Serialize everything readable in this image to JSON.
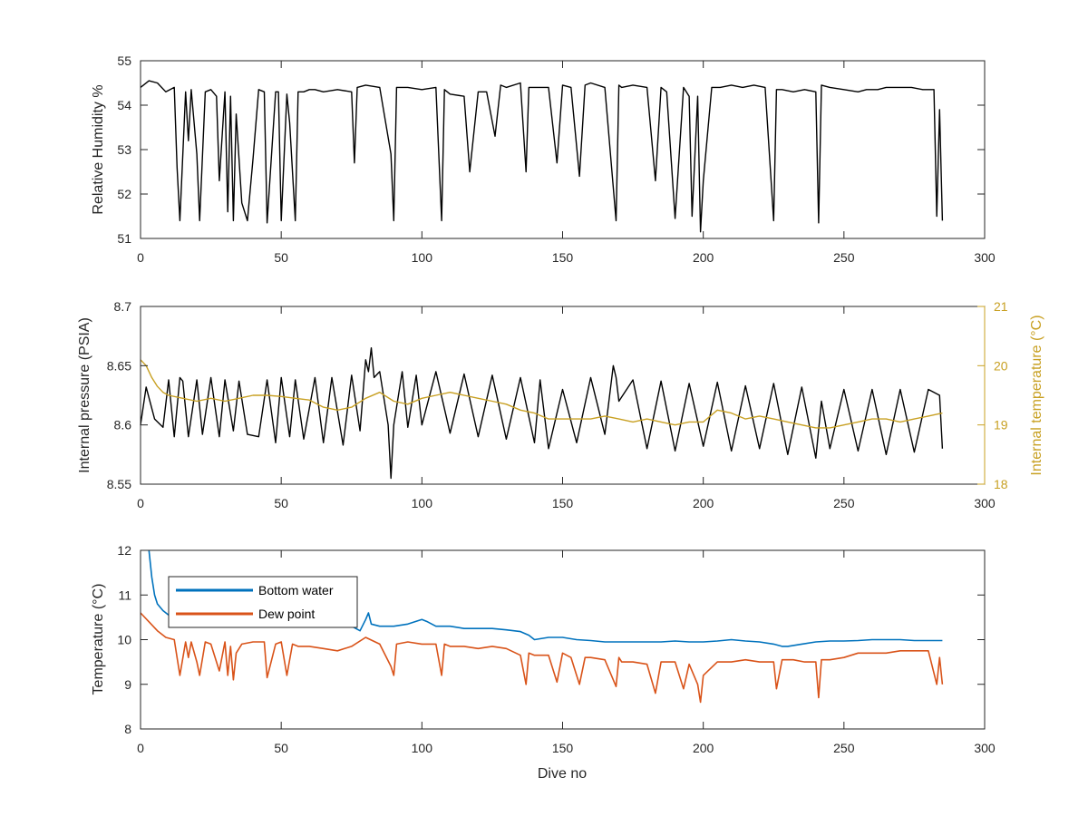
{
  "chart_data": [
    {
      "type": "line",
      "xlabel": "",
      "ylabel": "Relative Humidity %",
      "xlim": [
        0,
        300
      ],
      "ylim": [
        51,
        55
      ],
      "xticks": [
        "0",
        "50",
        "100",
        "150",
        "200",
        "250",
        "300"
      ],
      "yticks": [
        "51",
        "52",
        "53",
        "54",
        "55"
      ],
      "grid": false,
      "series": [
        {
          "color": "#000000",
          "x": [
            0,
            3,
            6,
            9,
            12,
            13,
            14,
            16,
            17,
            18,
            20,
            21,
            23,
            25,
            27,
            28,
            30,
            31,
            32,
            33,
            34,
            36,
            38,
            40,
            42,
            44,
            45,
            48,
            49,
            50,
            52,
            53,
            55,
            56,
            58,
            60,
            62,
            65,
            70,
            75,
            76,
            77,
            80,
            85,
            89,
            90,
            91,
            95,
            100,
            105,
            107,
            108,
            110,
            115,
            117,
            120,
            123,
            126,
            128,
            130,
            135,
            137,
            138,
            140,
            145,
            148,
            150,
            153,
            156,
            158,
            160,
            165,
            169,
            170,
            171,
            175,
            180,
            183,
            185,
            187,
            190,
            193,
            195,
            196,
            198,
            199,
            200,
            203,
            206,
            210,
            214,
            218,
            222,
            225,
            226,
            228,
            232,
            236,
            240,
            241,
            242,
            245,
            250,
            255,
            258,
            262,
            265,
            270,
            274,
            278,
            282,
            283,
            284,
            285
          ],
          "y": [
            54.4,
            54.55,
            54.5,
            54.3,
            54.4,
            52.6,
            51.4,
            54.3,
            53.2,
            54.35,
            52.9,
            51.4,
            54.3,
            54.35,
            54.2,
            52.3,
            54.3,
            51.6,
            54.2,
            51.4,
            53.8,
            51.8,
            51.4,
            52.8,
            54.35,
            54.3,
            51.35,
            54.3,
            54.3,
            51.4,
            54.25,
            53.6,
            51.4,
            54.3,
            54.3,
            54.35,
            54.35,
            54.3,
            54.35,
            54.3,
            52.7,
            54.4,
            54.45,
            54.4,
            52.9,
            51.4,
            54.4,
            54.4,
            54.35,
            54.4,
            51.4,
            54.35,
            54.25,
            54.2,
            52.5,
            54.3,
            54.3,
            53.3,
            54.45,
            54.4,
            54.5,
            52.5,
            54.4,
            54.4,
            54.4,
            52.7,
            54.45,
            54.4,
            52.4,
            54.45,
            54.5,
            54.4,
            51.4,
            54.45,
            54.4,
            54.45,
            54.4,
            52.3,
            54.4,
            54.3,
            51.45,
            54.4,
            54.2,
            51.5,
            54.2,
            51.15,
            52.3,
            54.4,
            54.4,
            54.45,
            54.4,
            54.45,
            54.4,
            51.4,
            54.35,
            54.35,
            54.3,
            54.35,
            54.3,
            51.35,
            54.45,
            54.4,
            54.35,
            54.3,
            54.35,
            54.35,
            54.4,
            54.4,
            54.4,
            54.35,
            54.35,
            51.5,
            53.9,
            51.4
          ]
        }
      ]
    },
    {
      "type": "line",
      "xlabel": "",
      "ylabel": "Internal pressure (PSIA)",
      "ylabel_right": "Internal temperature (°C)",
      "xlim": [
        0,
        300
      ],
      "ylim": [
        8.55,
        8.7
      ],
      "ylim_right": [
        18,
        21
      ],
      "xticks": [
        "0",
        "50",
        "100",
        "150",
        "200",
        "250",
        "300"
      ],
      "yticks": [
        "8.55",
        "8.6",
        "8.65",
        "8.7"
      ],
      "yticks_right": [
        "18",
        "19",
        "20",
        "21"
      ],
      "grid": false,
      "series": [
        {
          "axis": "left",
          "color": "#000000",
          "x": [
            0,
            2,
            5,
            8,
            10,
            12,
            14,
            15,
            17,
            20,
            22,
            25,
            28,
            30,
            33,
            35,
            38,
            42,
            45,
            48,
            50,
            53,
            55,
            58,
            62,
            65,
            68,
            72,
            75,
            78,
            80,
            81,
            82,
            83,
            85,
            88,
            89,
            90,
            93,
            95,
            98,
            100,
            105,
            110,
            115,
            120,
            125,
            130,
            135,
            140,
            142,
            145,
            150,
            155,
            160,
            165,
            168,
            169,
            170,
            175,
            180,
            185,
            190,
            195,
            200,
            205,
            210,
            215,
            220,
            225,
            230,
            235,
            240,
            242,
            245,
            250,
            255,
            260,
            265,
            270,
            275,
            280,
            284,
            285
          ],
          "y": [
            8.6,
            8.632,
            8.605,
            8.598,
            8.638,
            8.59,
            8.64,
            8.637,
            8.59,
            8.638,
            8.592,
            8.64,
            8.59,
            8.638,
            8.595,
            8.637,
            8.592,
            8.59,
            8.638,
            8.585,
            8.64,
            8.59,
            8.638,
            8.588,
            8.64,
            8.585,
            8.64,
            8.583,
            8.642,
            8.595,
            8.655,
            8.645,
            8.665,
            8.64,
            8.645,
            8.6,
            8.555,
            8.6,
            8.645,
            8.598,
            8.642,
            8.6,
            8.645,
            8.593,
            8.643,
            8.59,
            8.642,
            8.588,
            8.64,
            8.585,
            8.638,
            8.58,
            8.63,
            8.585,
            8.64,
            8.592,
            8.65,
            8.64,
            8.62,
            8.638,
            8.58,
            8.637,
            8.578,
            8.635,
            8.582,
            8.636,
            8.578,
            8.633,
            8.58,
            8.635,
            8.575,
            8.632,
            8.572,
            8.62,
            8.58,
            8.63,
            8.578,
            8.63,
            8.575,
            8.63,
            8.577,
            8.63,
            8.625,
            8.58
          ]
        },
        {
          "axis": "right",
          "color": "#C8A022",
          "x": [
            0,
            2,
            4,
            6,
            8,
            10,
            15,
            20,
            25,
            30,
            35,
            40,
            45,
            50,
            55,
            60,
            65,
            70,
            75,
            80,
            85,
            90,
            95,
            100,
            105,
            110,
            115,
            120,
            125,
            130,
            135,
            140,
            145,
            150,
            155,
            160,
            165,
            170,
            175,
            180,
            185,
            190,
            195,
            200,
            205,
            210,
            215,
            220,
            225,
            230,
            235,
            240,
            245,
            250,
            255,
            260,
            265,
            270,
            275,
            280,
            285
          ],
          "y": [
            20.1,
            20.0,
            19.8,
            19.65,
            19.55,
            19.5,
            19.45,
            19.4,
            19.45,
            19.4,
            19.45,
            19.5,
            19.5,
            19.48,
            19.45,
            19.42,
            19.3,
            19.25,
            19.3,
            19.45,
            19.55,
            19.4,
            19.35,
            19.45,
            19.5,
            19.55,
            19.5,
            19.45,
            19.4,
            19.35,
            19.25,
            19.2,
            19.1,
            19.1,
            19.1,
            19.1,
            19.15,
            19.1,
            19.05,
            19.1,
            19.05,
            19.0,
            19.05,
            19.05,
            19.25,
            19.2,
            19.1,
            19.15,
            19.1,
            19.05,
            19.0,
            18.95,
            18.95,
            19.0,
            19.05,
            19.1,
            19.1,
            19.05,
            19.1,
            19.15,
            19.2
          ]
        }
      ]
    },
    {
      "type": "line",
      "xlabel": "Dive no",
      "ylabel": "Temperature (°C)",
      "xlim": [
        0,
        300
      ],
      "ylim": [
        8,
        12
      ],
      "xticks": [
        "0",
        "50",
        "100",
        "150",
        "200",
        "250",
        "300"
      ],
      "yticks": [
        "8",
        "9",
        "10",
        "11",
        "12"
      ],
      "grid": false,
      "legend_position": "top-left",
      "series": [
        {
          "name": "Bottom water",
          "color": "#0072BD",
          "x": [
            3,
            4,
            5,
            6,
            8,
            10,
            15,
            20,
            30,
            40,
            50,
            60,
            70,
            75,
            78,
            80,
            81,
            82,
            85,
            90,
            95,
            100,
            102,
            105,
            110,
            115,
            120,
            125,
            130,
            135,
            138,
            140,
            145,
            150,
            155,
            160,
            165,
            170,
            175,
            180,
            185,
            190,
            195,
            200,
            205,
            210,
            215,
            220,
            225,
            228,
            230,
            235,
            240,
            245,
            250,
            255,
            260,
            265,
            270,
            275,
            280,
            285
          ],
          "y": [
            12.0,
            11.4,
            11.0,
            10.8,
            10.65,
            10.55,
            10.5,
            10.48,
            10.5,
            10.48,
            10.45,
            10.45,
            10.35,
            10.3,
            10.2,
            10.45,
            10.6,
            10.35,
            10.3,
            10.3,
            10.35,
            10.45,
            10.4,
            10.3,
            10.3,
            10.25,
            10.25,
            10.25,
            10.22,
            10.18,
            10.1,
            10.0,
            10.05,
            10.05,
            10.0,
            9.98,
            9.95,
            9.95,
            9.95,
            9.95,
            9.95,
            9.97,
            9.95,
            9.95,
            9.97,
            10.0,
            9.97,
            9.95,
            9.9,
            9.85,
            9.85,
            9.9,
            9.95,
            9.97,
            9.97,
            9.98,
            10.0,
            10.0,
            10.0,
            9.98,
            9.98,
            9.98
          ]
        },
        {
          "name": "Dew point",
          "color": "#D95319",
          "x": [
            0,
            3,
            6,
            9,
            12,
            13,
            14,
            16,
            17,
            18,
            20,
            21,
            23,
            25,
            28,
            30,
            31,
            32,
            33,
            34,
            36,
            40,
            44,
            45,
            48,
            50,
            52,
            54,
            56,
            60,
            65,
            70,
            75,
            80,
            85,
            89,
            90,
            91,
            95,
            100,
            105,
            107,
            108,
            110,
            115,
            120,
            125,
            130,
            135,
            137,
            138,
            140,
            145,
            148,
            150,
            153,
            156,
            158,
            160,
            165,
            169,
            170,
            171,
            175,
            180,
            183,
            185,
            190,
            193,
            195,
            198,
            199,
            200,
            205,
            210,
            215,
            220,
            225,
            226,
            228,
            232,
            236,
            240,
            241,
            242,
            245,
            250,
            255,
            260,
            265,
            270,
            275,
            280,
            283,
            284,
            285
          ],
          "y": [
            10.6,
            10.4,
            10.2,
            10.05,
            10.0,
            9.6,
            9.2,
            9.95,
            9.6,
            9.95,
            9.5,
            9.2,
            9.95,
            9.9,
            9.3,
            9.95,
            9.2,
            9.85,
            9.1,
            9.7,
            9.9,
            9.95,
            9.95,
            9.15,
            9.9,
            9.95,
            9.2,
            9.9,
            9.85,
            9.85,
            9.8,
            9.75,
            9.85,
            10.05,
            9.9,
            9.4,
            9.2,
            9.9,
            9.95,
            9.9,
            9.9,
            9.2,
            9.9,
            9.85,
            9.85,
            9.8,
            9.85,
            9.8,
            9.65,
            9.0,
            9.7,
            9.65,
            9.65,
            9.05,
            9.7,
            9.6,
            9.0,
            9.6,
            9.6,
            9.55,
            8.95,
            9.6,
            9.5,
            9.5,
            9.45,
            8.8,
            9.5,
            9.5,
            8.9,
            9.45,
            9.0,
            8.6,
            9.2,
            9.5,
            9.5,
            9.55,
            9.5,
            9.5,
            8.9,
            9.55,
            9.55,
            9.5,
            9.5,
            8.7,
            9.55,
            9.55,
            9.6,
            9.7,
            9.7,
            9.7,
            9.75,
            9.75,
            9.75,
            9.0,
            9.6,
            9.0
          ]
        }
      ]
    }
  ]
}
